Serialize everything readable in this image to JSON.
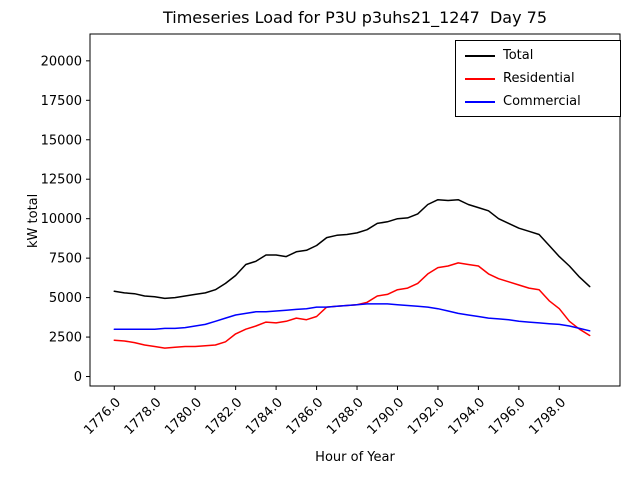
{
  "chart_data": {
    "type": "line",
    "title": "Timeseries Load for P3U p3uhs21_1247  Day 75",
    "xlabel": "Hour of Year",
    "ylabel": "kW total",
    "xlim": [
      1774.8,
      1801.0
    ],
    "ylim": [
      -600,
      21700
    ],
    "grid": false,
    "legend_position": "upper right",
    "xticks": {
      "values": [
        1776,
        1778,
        1780,
        1782,
        1784,
        1786,
        1788,
        1790,
        1792,
        1794,
        1796,
        1798
      ],
      "labels": [
        "1776.0",
        "1778.0",
        "1780.0",
        "1782.0",
        "1784.0",
        "1786.0",
        "1788.0",
        "1790.0",
        "1792.0",
        "1794.0",
        "1796.0",
        "1798.0"
      ]
    },
    "yticks": {
      "values": [
        0,
        2500,
        5000,
        7500,
        10000,
        12500,
        15000,
        17500,
        20000
      ],
      "labels": [
        "0",
        "2500",
        "5000",
        "7500",
        "10000",
        "12500",
        "15000",
        "17500",
        "20000"
      ]
    },
    "x": [
      1776.0,
      1776.5,
      1777.0,
      1777.5,
      1778.0,
      1778.5,
      1779.0,
      1779.5,
      1780.0,
      1780.5,
      1781.0,
      1781.5,
      1782.0,
      1782.5,
      1783.0,
      1783.5,
      1784.0,
      1784.5,
      1785.0,
      1785.5,
      1786.0,
      1786.5,
      1787.0,
      1787.5,
      1788.0,
      1788.5,
      1789.0,
      1789.5,
      1790.0,
      1790.5,
      1791.0,
      1791.5,
      1792.0,
      1792.5,
      1793.0,
      1793.5,
      1794.0,
      1794.5,
      1795.0,
      1795.5,
      1796.0,
      1796.5,
      1797.0,
      1797.5,
      1798.0,
      1798.5,
      1799.0,
      1799.5
    ],
    "series": [
      {
        "name": "Total",
        "color": "#000000",
        "values": [
          5400,
          5300,
          5250,
          5100,
          5050,
          4950,
          5000,
          5100,
          5200,
          5300,
          5500,
          5900,
          6400,
          7100,
          7300,
          7700,
          7700,
          7600,
          7900,
          8000,
          8300,
          8800,
          8950,
          9000,
          9100,
          9300,
          9700,
          9800,
          10000,
          10050,
          10300,
          10900,
          11200,
          11150,
          11200,
          10900,
          10700,
          10500,
          10000,
          9700,
          9400,
          9200,
          9000,
          8300,
          7600,
          7000,
          6300,
          5700
        ]
      },
      {
        "name": "Residential",
        "color": "#ff0000",
        "values": [
          2300,
          2250,
          2150,
          2000,
          1900,
          1800,
          1850,
          1900,
          1900,
          1950,
          2000,
          2200,
          2700,
          3000,
          3200,
          3450,
          3400,
          3500,
          3700,
          3600,
          3800,
          4400,
          4450,
          4500,
          4550,
          4700,
          5100,
          5200,
          5500,
          5600,
          5900,
          6500,
          6900,
          7000,
          7200,
          7100,
          7000,
          6500,
          6200,
          6000,
          5800,
          5600,
          5500,
          4800,
          4300,
          3500,
          3000,
          2600
        ]
      },
      {
        "name": "Commercial",
        "color": "#0000ff",
        "values": [
          3000,
          3000,
          3000,
          3000,
          3000,
          3050,
          3050,
          3100,
          3200,
          3300,
          3500,
          3700,
          3900,
          4000,
          4100,
          4100,
          4150,
          4200,
          4250,
          4300,
          4400,
          4400,
          4450,
          4500,
          4550,
          4600,
          4600,
          4600,
          4550,
          4500,
          4450,
          4400,
          4300,
          4150,
          4000,
          3900,
          3800,
          3700,
          3650,
          3600,
          3500,
          3450,
          3400,
          3350,
          3300,
          3200,
          3050,
          2900
        ]
      }
    ]
  }
}
